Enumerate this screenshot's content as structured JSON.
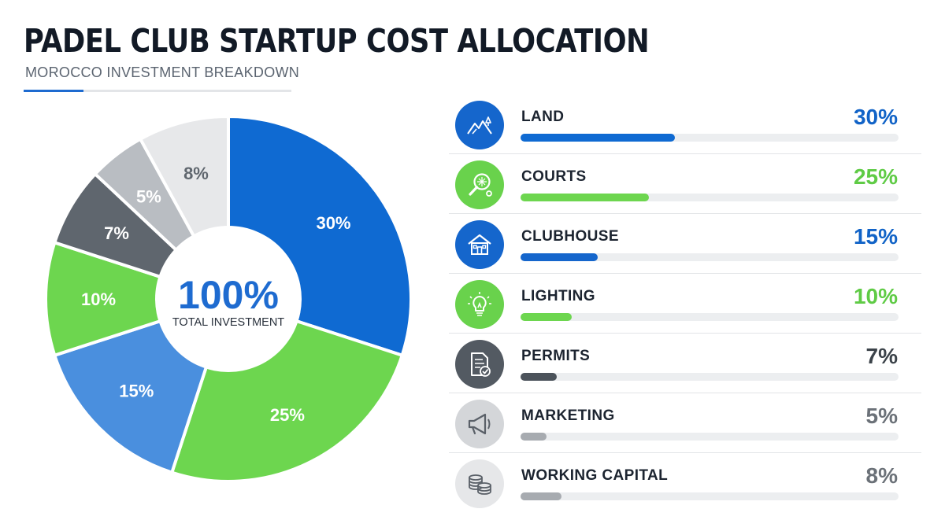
{
  "header": {
    "title": "PADEL CLUB STARTUP COST ALLOCATION",
    "subtitle": "MOROCCO INVESTMENT BREAKDOWN"
  },
  "center": {
    "value": "100%",
    "caption": "TOTAL INVESTMENT"
  },
  "colors": {
    "accent": "#1e6bd0",
    "center_value": "#1e6bd0",
    "center_caption": "#2a323d"
  },
  "chart_data": {
    "type": "pie",
    "title": "PADEL CLUB STARTUP COST ALLOCATION",
    "categories": [
      "LAND",
      "COURTS",
      "CLUBHOUSE",
      "LIGHTING",
      "PERMITS",
      "MARKETING",
      "WORKING CAPITAL"
    ],
    "values": [
      30,
      25,
      15,
      10,
      7,
      5,
      8
    ],
    "value_labels": [
      "30%",
      "25%",
      "15%",
      "10%",
      "7%",
      "5%",
      "8%"
    ],
    "slice_colors": [
      "#0f6ad2",
      "#6dd64f",
      "#4a8fde",
      "#6dd64f",
      "#5f666e",
      "#b9bdc2",
      "#e7e8ea"
    ],
    "slice_label_colors": [
      "#ffffff",
      "#ffffff",
      "#ffffff",
      "#ffffff",
      "#ffffff",
      "#ffffff",
      "#5f666e"
    ],
    "start_angle_deg": 0,
    "direction": "clockwise",
    "donut_hole": true,
    "legend": "right"
  },
  "breakdown": {
    "items": [
      {
        "label": "LAND",
        "percent": "30%",
        "value": 30,
        "icon": "landscape-icon",
        "color": "#0f6ad2",
        "pct_color": "#1163c7",
        "icon_bg": "#1566cc",
        "icon_fg": "#ffffff"
      },
      {
        "label": "COURTS",
        "percent": "25%",
        "value": 25,
        "icon": "padel-racket-icon",
        "color": "#6dd64f",
        "pct_color": "#5fcb45",
        "icon_bg": "#69d24c",
        "icon_fg": "#ffffff"
      },
      {
        "label": "CLUBHOUSE",
        "percent": "15%",
        "value": 15,
        "icon": "house-icon",
        "color": "#1566cc",
        "pct_color": "#1163c7",
        "icon_bg": "#1566cc",
        "icon_fg": "#ffffff"
      },
      {
        "label": "LIGHTING",
        "percent": "10%",
        "value": 10,
        "icon": "lightbulb-icon",
        "color": "#6dd64f",
        "pct_color": "#5fcb45",
        "icon_bg": "#69d24c",
        "icon_fg": "#ffffff"
      },
      {
        "label": "PERMITS",
        "percent": "7%",
        "value": 7,
        "icon": "document-check-icon",
        "color": "#4c535b",
        "pct_color": "#3b4249",
        "icon_bg": "#535a62",
        "icon_fg": "#ffffff"
      },
      {
        "label": "MARKETING",
        "percent": "5%",
        "value": 5,
        "icon": "megaphone-icon",
        "color": "#a7abb0",
        "pct_color": "#6b7178",
        "icon_bg": "#d4d6d9",
        "icon_fg": "#5a6068"
      },
      {
        "label": "WORKING CAPITAL",
        "percent": "8%",
        "value": 8,
        "icon": "coins-icon",
        "color": "#a7abb0",
        "pct_color": "#6b7178",
        "icon_bg": "#e6e7e9",
        "icon_fg": "#5a6068"
      }
    ]
  }
}
